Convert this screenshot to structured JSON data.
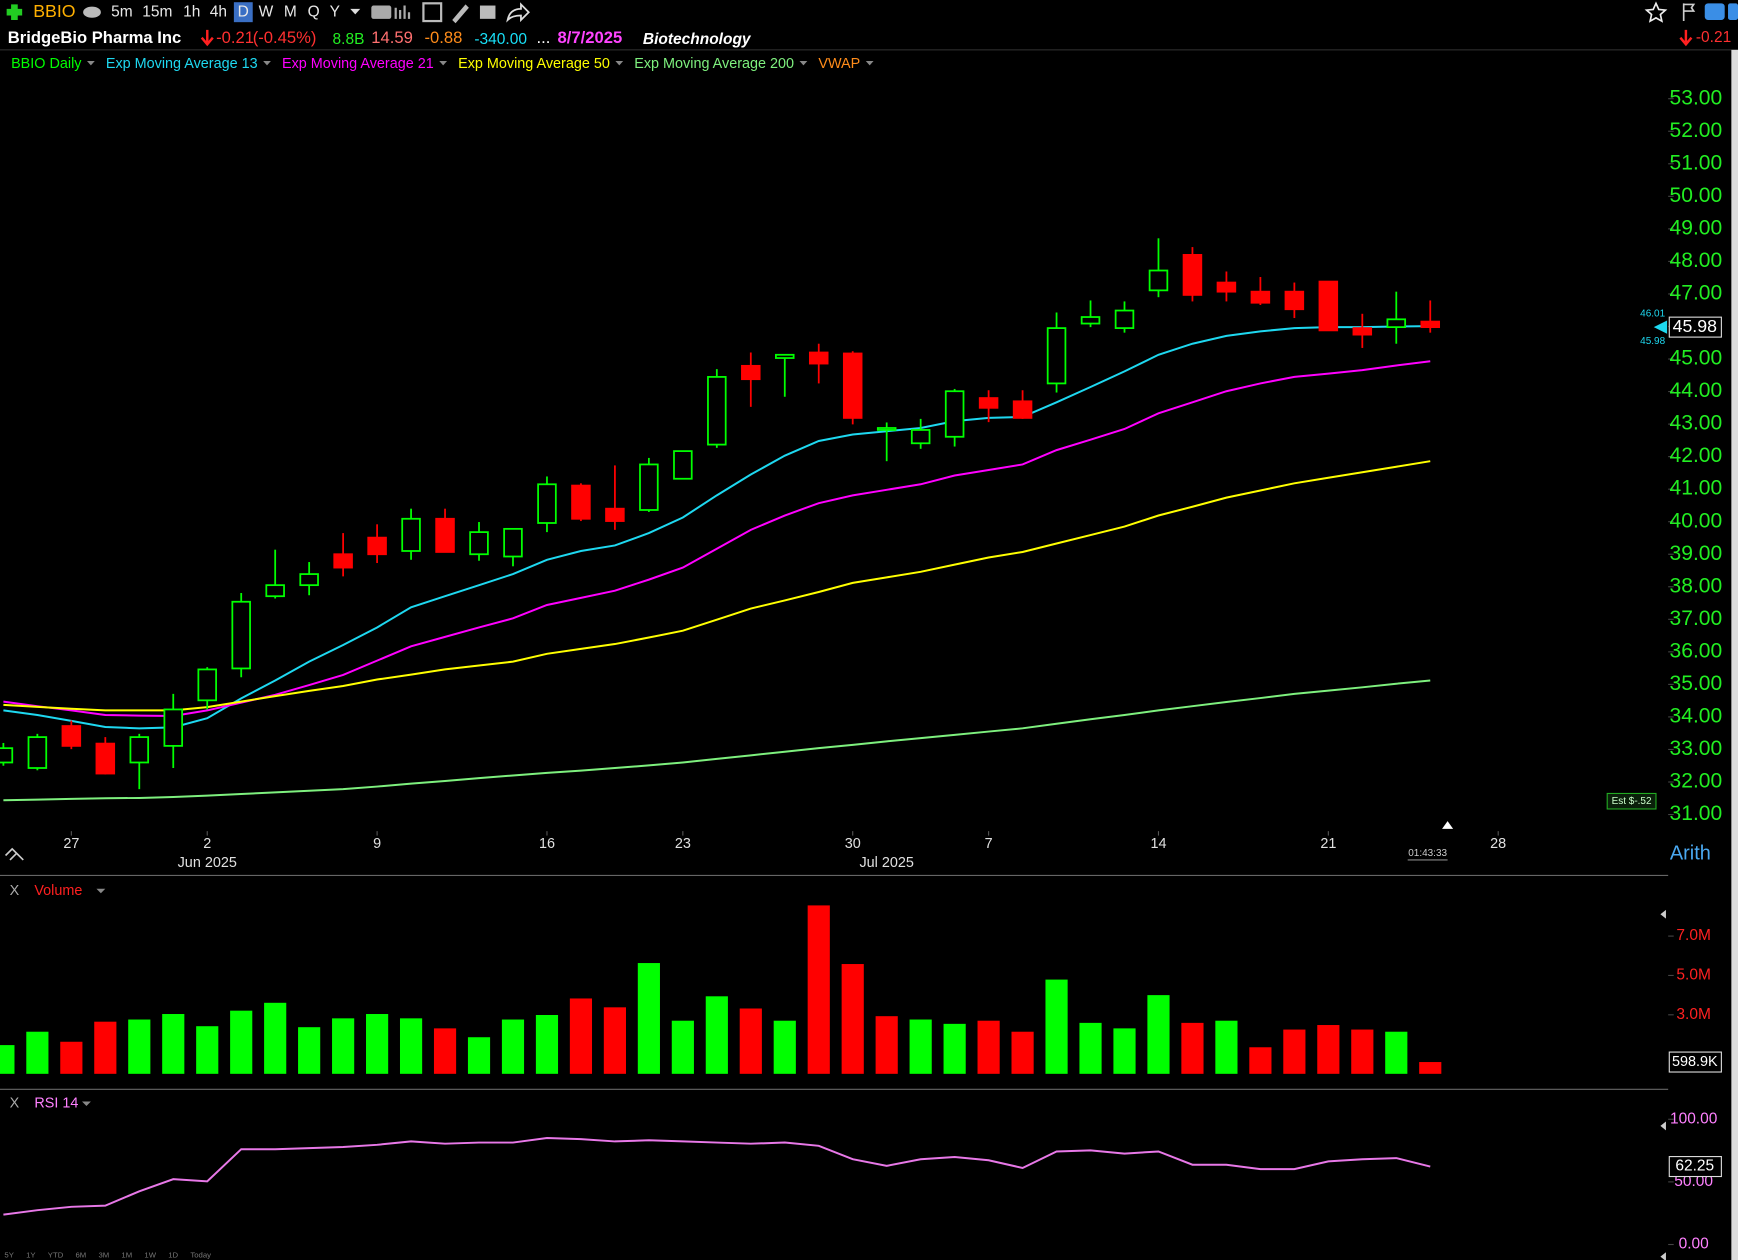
{
  "toolbar": {
    "symbol": "BBIO",
    "timeframes": [
      "5m",
      "15m",
      "1h",
      "4h",
      "D",
      "W",
      "M",
      "Q",
      "Y"
    ]
  },
  "header": {
    "name": "BridgeBio Pharma Inc",
    "change": "-0.21",
    "change_pct": "(-0.45%)",
    "market_cap": "8.8B",
    "pe": "14.59",
    "eps": "-0.88",
    "other": "-340.00",
    "more": "...",
    "date": "8/7/2025",
    "industry": "Biotechnology",
    "right_change": "-0.21"
  },
  "footer": {
    "ranges": [
      "5Y",
      "1Y",
      "YTD",
      "6M",
      "3M",
      "1M",
      "1W",
      "1D",
      "Today"
    ],
    "close_label": "X",
    "clock": "01:43:33",
    "scale_mode": "Arith",
    "estimate": "Est $-.52"
  },
  "chart_data": [
    {
      "type": "candlestick",
      "name": "BBIO Daily",
      "color_up": "#00ff00",
      "color_down": "#ff0000",
      "x": [
        0,
        1,
        2,
        3,
        4,
        5,
        6,
        7,
        8,
        9,
        10,
        11,
        12,
        13,
        14,
        15,
        16,
        17,
        18,
        19,
        20,
        21,
        22,
        23,
        24,
        25,
        26,
        27,
        28,
        29,
        30,
        31,
        32,
        33,
        34,
        35,
        36,
        37,
        38,
        39,
        40,
        41,
        42
      ],
      "open": [
        32.6,
        32.43,
        33.72,
        33.18,
        32.6,
        33.11,
        34.51,
        35.49,
        37.71,
        38.05,
        39.0,
        39.51,
        39.1,
        40.09,
        39.0,
        38.93,
        39.96,
        41.11,
        40.4,
        40.36,
        41.32,
        42.37,
        44.79,
        45.03,
        45.2,
        45.17,
        42.82,
        42.41,
        42.61,
        43.8,
        43.7,
        44.25,
        46.09,
        45.95,
        47.11,
        48.2,
        47.35,
        47.07,
        47.07,
        47.38,
        45.95,
        45.98,
        46.15
      ],
      "high": [
        33.2,
        33.48,
        33.89,
        33.38,
        33.48,
        34.71,
        35.53,
        37.81,
        39.14,
        38.76,
        39.65,
        39.92,
        40.4,
        40.4,
        39.99,
        39.78,
        41.39,
        41.18,
        41.73,
        41.96,
        42.17,
        44.69,
        45.2,
        45.13,
        45.47,
        45.24,
        43.05,
        43.16,
        44.08,
        44.04,
        44.04,
        46.43,
        46.8,
        46.77,
        48.71,
        48.44,
        47.69,
        47.52,
        47.35,
        47.38,
        46.39,
        47.07,
        46.8
      ],
      "low": [
        32.5,
        32.36,
        33.01,
        32.23,
        31.78,
        32.43,
        34.23,
        35.22,
        37.64,
        37.74,
        38.32,
        38.73,
        38.83,
        39.07,
        38.8,
        38.63,
        39.68,
        40.02,
        39.75,
        40.3,
        41.32,
        42.27,
        43.53,
        43.84,
        44.25,
        42.99,
        41.86,
        42.24,
        42.31,
        43.06,
        43.16,
        43.97,
        45.98,
        45.81,
        46.9,
        46.77,
        46.77,
        46.66,
        46.26,
        45.88,
        45.34,
        45.47,
        45.81
      ],
      "close": [
        33.04,
        33.38,
        33.11,
        32.26,
        33.38,
        34.23,
        35.46,
        37.54,
        38.05,
        38.39,
        38.59,
        39.0,
        40.09,
        39.07,
        39.68,
        39.78,
        41.15,
        40.09,
        40.02,
        41.76,
        42.17,
        44.45,
        44.38,
        45.13,
        44.86,
        43.19,
        42.88,
        42.82,
        44.01,
        43.5,
        43.19,
        45.95,
        46.29,
        46.49,
        47.72,
        46.97,
        47.07,
        46.73,
        46.53,
        45.88,
        45.75,
        46.22,
        45.98
      ],
      "series": [
        {
          "name": "Exp Moving Average 13",
          "color": "#1ed8f0",
          "values": [
            34.2,
            34.06,
            33.88,
            33.69,
            33.65,
            33.68,
            33.96,
            34.57,
            35.12,
            35.7,
            36.21,
            36.75,
            37.37,
            37.71,
            38.05,
            38.39,
            38.83,
            39.1,
            39.27,
            39.65,
            40.13,
            40.81,
            41.45,
            42.03,
            42.48,
            42.68,
            42.78,
            42.88,
            43.09,
            43.19,
            43.22,
            43.67,
            44.14,
            44.62,
            45.13,
            45.47,
            45.71,
            45.85,
            45.95,
            45.98,
            45.98,
            46.0,
            46.01
          ]
        },
        {
          "name": "Exp Moving Average 21",
          "color": "#ff00ff",
          "values": [
            34.47,
            34.33,
            34.2,
            34.06,
            34.04,
            34.03,
            34.2,
            34.44,
            34.68,
            34.98,
            35.29,
            35.73,
            36.17,
            36.46,
            36.75,
            37.03,
            37.44,
            37.66,
            37.88,
            38.22,
            38.59,
            39.17,
            39.75,
            40.19,
            40.57,
            40.81,
            40.98,
            41.15,
            41.42,
            41.59,
            41.76,
            42.2,
            42.52,
            42.85,
            43.33,
            43.67,
            44.01,
            44.25,
            44.45,
            44.55,
            44.66,
            44.8,
            44.93
          ]
        },
        {
          "name": "Exp Moving Average 50",
          "color": "#ffff00",
          "values": [
            34.37,
            34.31,
            34.25,
            34.2,
            34.2,
            34.2,
            34.3,
            34.47,
            34.64,
            34.8,
            34.95,
            35.15,
            35.3,
            35.46,
            35.58,
            35.7,
            35.94,
            36.09,
            36.24,
            36.44,
            36.65,
            36.99,
            37.33,
            37.58,
            37.84,
            38.12,
            38.29,
            38.46,
            38.68,
            38.9,
            39.07,
            39.33,
            39.59,
            39.85,
            40.19,
            40.46,
            40.74,
            40.96,
            41.18,
            41.35,
            41.52,
            41.69,
            41.86
          ]
        },
        {
          "name": "Exp Moving Average 200",
          "color": "#7ef07e",
          "values": [
            31.44,
            31.46,
            31.48,
            31.5,
            31.51,
            31.54,
            31.58,
            31.63,
            31.68,
            31.73,
            31.78,
            31.86,
            31.95,
            32.03,
            32.12,
            32.2,
            32.28,
            32.35,
            32.43,
            32.51,
            32.6,
            32.71,
            32.82,
            32.93,
            33.04,
            33.14,
            33.25,
            33.35,
            33.45,
            33.55,
            33.65,
            33.79,
            33.93,
            34.06,
            34.2,
            34.33,
            34.46,
            34.58,
            34.71,
            34.81,
            34.91,
            35.02,
            35.12
          ]
        },
        {
          "name": "VWAP",
          "color": "#ff8c1a"
        }
      ],
      "xlim": [
        -0.1,
        48.84
      ],
      "xticks": [
        {
          "value": 2,
          "label": "27"
        },
        {
          "value": 6,
          "label": "2"
        },
        {
          "value": 11,
          "label": "9"
        },
        {
          "value": 16,
          "label": "16"
        },
        {
          "value": 20,
          "label": "23"
        },
        {
          "value": 25,
          "label": "30"
        },
        {
          "value": 29,
          "label": "7"
        },
        {
          "value": 34,
          "label": "14"
        },
        {
          "value": 39,
          "label": "21"
        },
        {
          "value": 44,
          "label": "28"
        }
      ],
      "month_ticks": [
        {
          "value": 6,
          "label": "Jun 2025"
        },
        {
          "value": 26,
          "label": "Jul 2025"
        }
      ],
      "ylim": [
        30.49,
        53.82
      ],
      "yticks": [
        {
          "value": 31,
          "label": "31.00"
        },
        {
          "value": 32,
          "label": "32.00"
        },
        {
          "value": 33,
          "label": "33.00"
        },
        {
          "value": 34,
          "label": "34.00"
        },
        {
          "value": 35,
          "label": "35.00"
        },
        {
          "value": 36,
          "label": "36.00"
        },
        {
          "value": 37,
          "label": "37.00"
        },
        {
          "value": 38,
          "label": "38.00"
        },
        {
          "value": 39,
          "label": "39.00"
        },
        {
          "value": 40,
          "label": "40.00"
        },
        {
          "value": 41,
          "label": "41.00"
        },
        {
          "value": 42,
          "label": "42.00"
        },
        {
          "value": 43,
          "label": "43.00"
        },
        {
          "value": 44,
          "label": "44.00"
        },
        {
          "value": 45,
          "label": "45.00"
        },
        {
          "value": 46,
          "label": "46.00"
        },
        {
          "value": 47,
          "label": "47.00"
        },
        {
          "value": 48,
          "label": "48.00"
        },
        {
          "value": 49,
          "label": "49.00"
        },
        {
          "value": 50,
          "label": "50.00"
        },
        {
          "value": 51,
          "label": "51.00"
        },
        {
          "value": 52,
          "label": "52.00"
        },
        {
          "value": 53,
          "label": "53.00"
        }
      ],
      "grid": false
    },
    {
      "type": "bar",
      "title": "Volume",
      "values": [
        1.46,
        2.14,
        1.63,
        2.65,
        2.76,
        3.04,
        2.42,
        3.21,
        3.61,
        2.37,
        2.82,
        3.04,
        2.82,
        2.31,
        1.86,
        2.76,
        2.99,
        3.83,
        3.38,
        5.63,
        2.7,
        3.94,
        3.32,
        2.7,
        8.56,
        5.58,
        2.93,
        2.76,
        2.54,
        2.7,
        2.14,
        4.79,
        2.59,
        2.31,
        4.0,
        2.59,
        2.7,
        1.35,
        2.25,
        2.48,
        2.25,
        2.14,
        0.5989
      ],
      "value_labels": [
        null,
        null,
        null,
        null,
        null,
        null,
        null,
        null,
        null,
        null,
        null,
        null,
        null,
        null,
        null,
        null,
        null,
        null,
        null,
        null,
        null,
        null,
        null,
        null,
        null,
        null,
        null,
        null,
        null,
        null,
        null,
        null,
        null,
        null,
        null,
        null,
        null,
        null,
        null,
        null,
        null,
        null,
        "598.9K"
      ],
      "value_colors": [
        "#00ff00",
        "#00ff00",
        "#ff0000",
        "#ff0000",
        "#00ff00",
        "#00ff00",
        "#00ff00",
        "#00ff00",
        "#00ff00",
        "#00ff00",
        "#00ff00",
        "#00ff00",
        "#00ff00",
        "#ff0000",
        "#00ff00",
        "#00ff00",
        "#00ff00",
        "#ff0000",
        "#ff0000",
        "#00ff00",
        "#00ff00",
        "#00ff00",
        "#ff0000",
        "#00ff00",
        "#ff0000",
        "#ff0000",
        "#ff0000",
        "#00ff00",
        "#00ff00",
        "#ff0000",
        "#ff0000",
        "#00ff00",
        "#00ff00",
        "#00ff00",
        "#00ff00",
        "#ff0000",
        "#00ff00",
        "#ff0000",
        "#ff0000",
        "#ff0000",
        "#ff0000",
        "#00ff00",
        "#ff0000"
      ],
      "ylim": [
        0,
        9.8
      ],
      "yticks": [
        {
          "value": 3,
          "label": "3.0M"
        },
        {
          "value": 5,
          "label": "5.0M"
        },
        {
          "value": 7,
          "label": "7.0M"
        }
      ]
    },
    {
      "type": "line",
      "title": "RSI 14",
      "color": "#e878e8",
      "values": [
        23.9,
        27.4,
        30.1,
        31.0,
        42.5,
        52.2,
        50.4,
        76.1,
        76.1,
        77.0,
        77.9,
        79.6,
        82.3,
        80.5,
        81.4,
        81.4,
        85.0,
        84.1,
        82.3,
        83.2,
        82.3,
        81.4,
        80.5,
        81.4,
        78.8,
        68.1,
        62.8,
        68.1,
        69.9,
        67.3,
        61.1,
        74.3,
        75.2,
        72.6,
        74.3,
        63.7,
        63.7,
        60.2,
        60.2,
        66.4,
        68.1,
        69.0,
        62.25
      ],
      "ylim": [
        -10.6,
        117.7
      ],
      "yticks": [
        {
          "value": 0,
          "label": "0.00"
        },
        {
          "value": 50,
          "label": "50.00"
        },
        {
          "value": 100,
          "label": "100.00"
        }
      ]
    }
  ]
}
